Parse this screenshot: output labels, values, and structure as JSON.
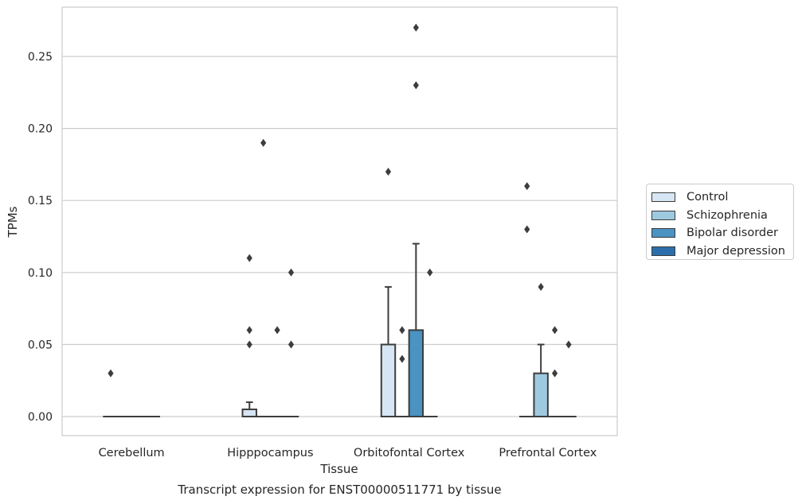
{
  "chart_data": {
    "type": "boxplot",
    "xlabel": "Tissue",
    "ylabel": "TPMs",
    "caption": "Transcript expression for ENST00000511771 by tissue",
    "ylim": [
      -0.013,
      0.284
    ],
    "yticks": [
      "0.00",
      "0.05",
      "0.10",
      "0.15",
      "0.20",
      "0.25"
    ],
    "ytick_values": [
      0,
      0.05,
      0.1,
      0.15,
      0.2,
      0.25
    ],
    "grid": "horizontal",
    "legend_position": "right",
    "categories": [
      "Cerebellum",
      "Hipppocampus",
      "Orbitofontal Cortex",
      "Prefrontal Cortex"
    ],
    "series": [
      {
        "name": "Control",
        "color": "#d6e6f4",
        "boxes": [
          {
            "min": 0,
            "q1": 0,
            "median": 0,
            "q3": 0,
            "max": 0,
            "outliers": [
              0.03
            ]
          },
          {
            "min": 0,
            "q1": 0,
            "median": 0,
            "q3": 0.005,
            "max": 0.01,
            "outliers": [
              0.11,
              0.06,
              0.05
            ]
          },
          {
            "min": 0,
            "q1": 0,
            "median": 0,
            "q3": 0.05,
            "max": 0.09,
            "outliers": [
              0.17
            ]
          },
          {
            "min": 0,
            "q1": 0,
            "median": 0,
            "q3": 0,
            "max": 0,
            "outliers": [
              0.16,
              0.13
            ]
          }
        ]
      },
      {
        "name": "Schizophrenia",
        "color": "#9ecae1",
        "boxes": [
          {
            "min": 0,
            "q1": 0,
            "median": 0,
            "q3": 0,
            "max": 0,
            "outliers": []
          },
          {
            "min": 0,
            "q1": 0,
            "median": 0,
            "q3": 0,
            "max": 0,
            "outliers": [
              0.19
            ]
          },
          {
            "min": 0,
            "q1": 0,
            "median": 0,
            "q3": 0,
            "max": 0,
            "outliers": [
              0.06,
              0.04
            ]
          },
          {
            "min": 0,
            "q1": 0,
            "median": 0,
            "q3": 0.03,
            "max": 0.05,
            "outliers": [
              0.09
            ]
          }
        ]
      },
      {
        "name": "Bipolar disorder",
        "color": "#4a93c3",
        "boxes": [
          {
            "min": 0,
            "q1": 0,
            "median": 0,
            "q3": 0,
            "max": 0,
            "outliers": []
          },
          {
            "min": 0,
            "q1": 0,
            "median": 0,
            "q3": 0,
            "max": 0,
            "outliers": [
              0.06
            ]
          },
          {
            "min": 0,
            "q1": 0,
            "median": 0,
            "q3": 0.06,
            "max": 0.12,
            "outliers": [
              0.27,
              0.23
            ]
          },
          {
            "min": 0,
            "q1": 0,
            "median": 0,
            "q3": 0,
            "max": 0,
            "outliers": [
              0.06,
              0.03
            ]
          }
        ]
      },
      {
        "name": "Major depression",
        "color": "#2c6eab",
        "boxes": [
          {
            "min": 0,
            "q1": 0,
            "median": 0,
            "q3": 0,
            "max": 0,
            "outliers": []
          },
          {
            "min": 0,
            "q1": 0,
            "median": 0,
            "q3": 0,
            "max": 0,
            "outliers": [
              0.1,
              0.05
            ]
          },
          {
            "min": 0,
            "q1": 0,
            "median": 0,
            "q3": 0,
            "max": 0,
            "outliers": [
              0.1
            ]
          },
          {
            "min": 0,
            "q1": 0,
            "median": 0,
            "q3": 0,
            "max": 0,
            "outliers": [
              0.05
            ]
          }
        ]
      }
    ]
  }
}
